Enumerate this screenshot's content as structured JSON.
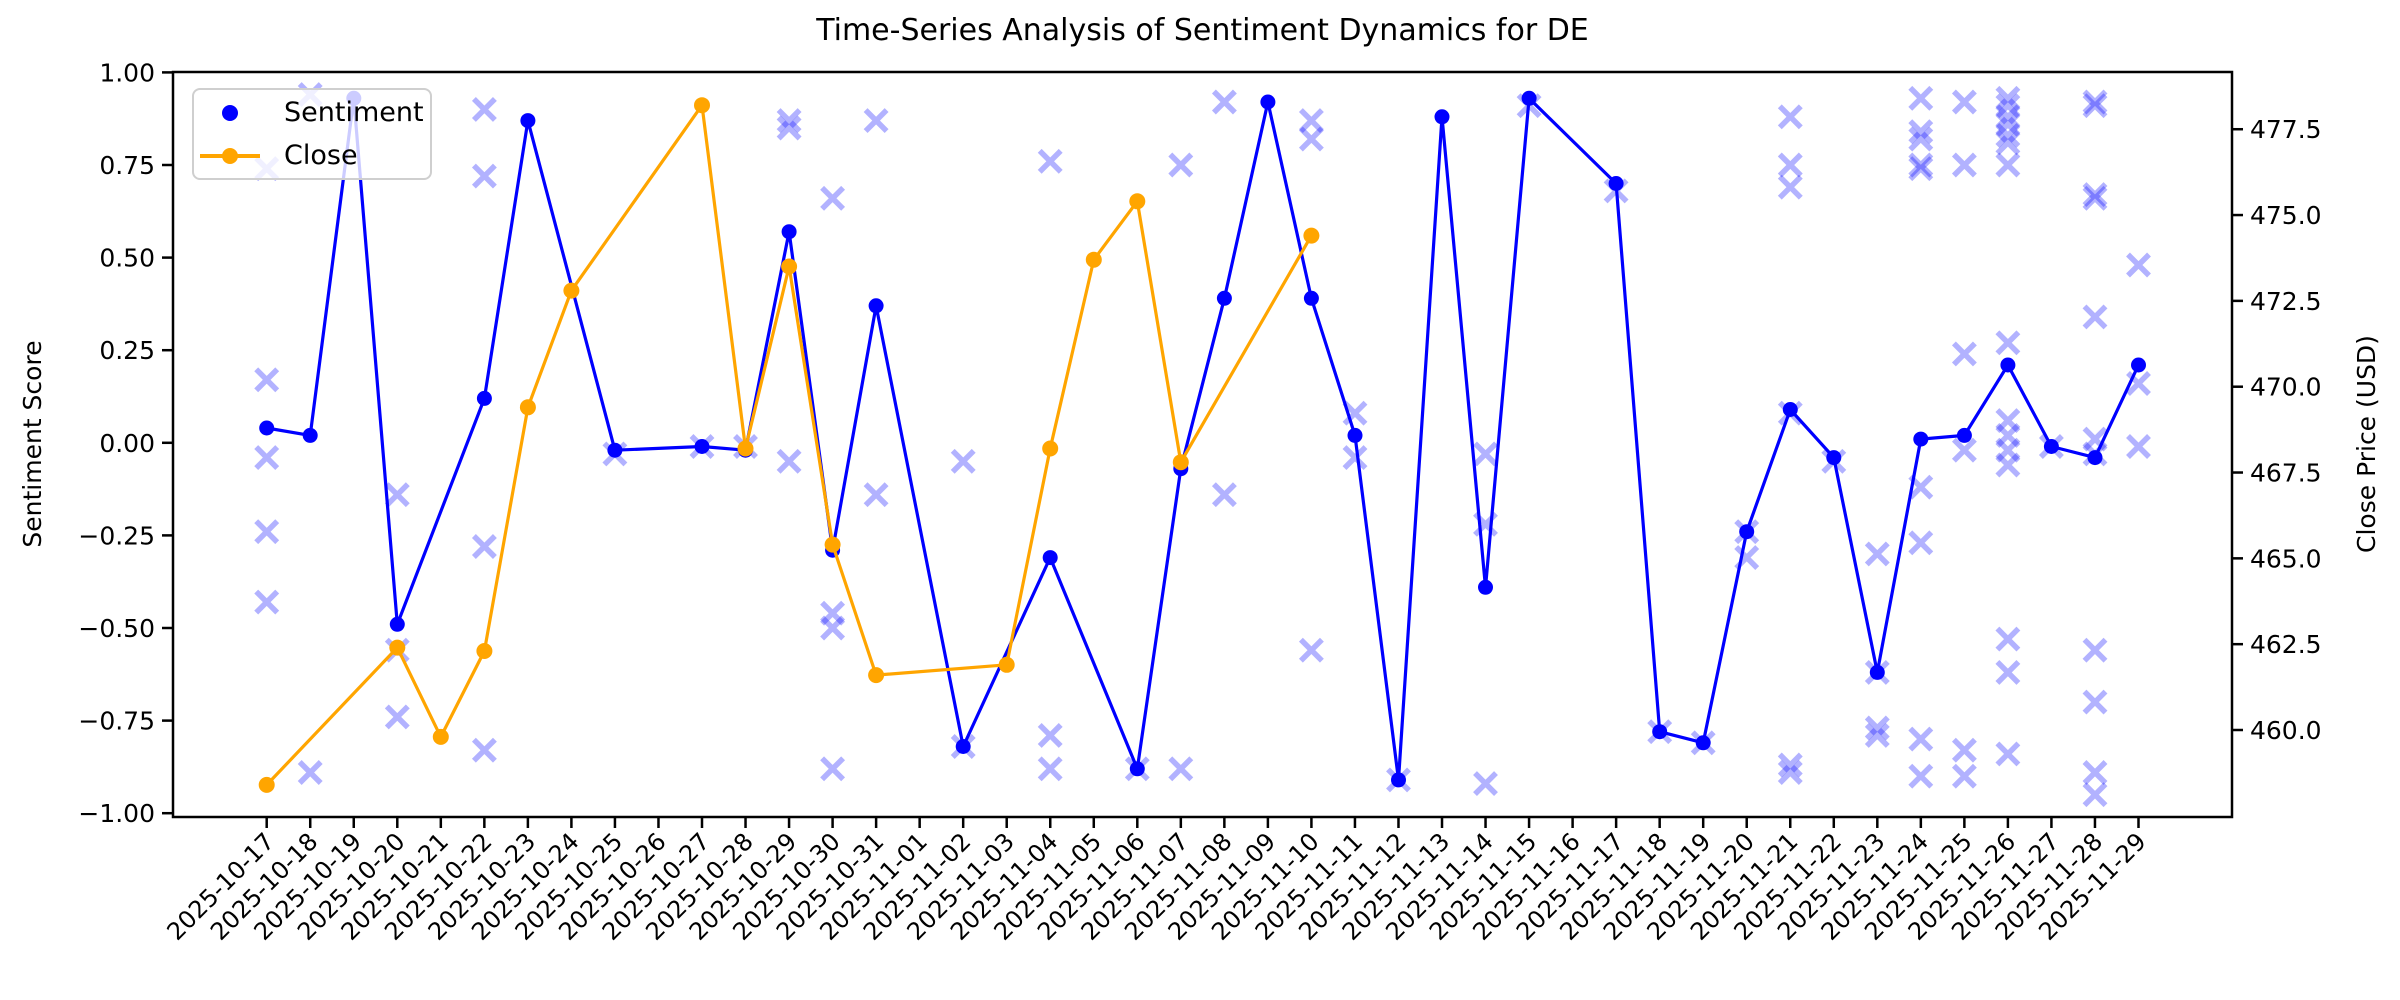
{
  "chart": {
    "title": "Time-Series Analysis of Sentiment Dynamics for DE",
    "ylabel_left": "Sentiment Score",
    "ylabel_right": "Close Price (USD)",
    "legend": [
      "Sentiment",
      "Close"
    ]
  },
  "chart_data": {
    "type": "line",
    "title": "Time-Series Analysis of Sentiment Dynamics for DE",
    "xlabel": "",
    "ylabel_left": "Sentiment Score",
    "ylabel_right": "Close Price (USD)",
    "ylim_left": [
      -1.0,
      1.0
    ],
    "ylim_right": [
      457.5,
      479.2
    ],
    "grid": false,
    "legend_position": "upper left",
    "colors": {
      "sentiment": "#0000FF",
      "close": "#FFA500",
      "scatter": "#0000FF",
      "scatter_opacity": 0.3,
      "axis": "#000000",
      "legend_border": "#CFCFCF"
    },
    "x_dates": [
      "2025-10-17",
      "2025-10-18",
      "2025-10-19",
      "2025-10-20",
      "2025-10-21",
      "2025-10-22",
      "2025-10-23",
      "2025-10-24",
      "2025-10-25",
      "2025-10-26",
      "2025-10-27",
      "2025-10-28",
      "2025-10-29",
      "2025-10-30",
      "2025-10-31",
      "2025-11-01",
      "2025-11-02",
      "2025-11-03",
      "2025-11-04",
      "2025-11-05",
      "2025-11-06",
      "2025-11-07",
      "2025-11-08",
      "2025-11-09",
      "2025-11-10",
      "2025-11-11",
      "2025-11-12",
      "2025-11-13",
      "2025-11-14",
      "2025-11-15",
      "2025-11-16",
      "2025-11-17",
      "2025-11-18",
      "2025-11-19",
      "2025-11-20",
      "2025-11-21",
      "2025-11-22",
      "2025-11-23",
      "2025-11-24",
      "2025-11-25",
      "2025-11-26",
      "2025-11-27",
      "2025-11-28",
      "2025-11-29"
    ],
    "yticks_left": {
      "values": [
        1.0,
        0.75,
        0.5,
        0.25,
        0.0,
        -0.25,
        -0.5,
        -0.75,
        -1.0
      ],
      "labels": [
        "1.00",
        "0.75",
        "0.50",
        "0.25",
        "0.00",
        "−0.25",
        "−0.50",
        "−0.75",
        "−1.00"
      ]
    },
    "yticks_right": {
      "values": [
        477.5,
        475.0,
        472.5,
        470.0,
        467.5,
        465.0,
        462.5,
        460.0
      ],
      "labels": [
        "477.5",
        "475.0",
        "472.5",
        "470.0",
        "467.5",
        "465.0",
        "462.5",
        "460.0"
      ]
    },
    "series": [
      {
        "name": "Sentiment",
        "axis": "left",
        "points": [
          [
            "2025-10-17",
            0.04
          ],
          [
            "2025-10-18",
            0.02
          ],
          [
            "2025-10-19",
            0.93
          ],
          [
            "2025-10-20",
            -0.49
          ],
          [
            "2025-10-22",
            0.12
          ],
          [
            "2025-10-23",
            0.87
          ],
          [
            "2025-10-25",
            -0.02
          ],
          [
            "2025-10-27",
            -0.01
          ],
          [
            "2025-10-28",
            -0.02
          ],
          [
            "2025-10-29",
            0.57
          ],
          [
            "2025-10-30",
            -0.29
          ],
          [
            "2025-10-31",
            0.37
          ],
          [
            "2025-11-02",
            -0.82
          ],
          [
            "2025-11-04",
            -0.31
          ],
          [
            "2025-11-06",
            -0.88
          ],
          [
            "2025-11-07",
            -0.07
          ],
          [
            "2025-11-08",
            0.39
          ],
          [
            "2025-11-09",
            0.92
          ],
          [
            "2025-11-10",
            0.39
          ],
          [
            "2025-11-11",
            0.02
          ],
          [
            "2025-11-12",
            -0.91
          ],
          [
            "2025-11-13",
            0.88
          ],
          [
            "2025-11-14",
            -0.39
          ],
          [
            "2025-11-15",
            0.93
          ],
          [
            "2025-11-17",
            0.7
          ],
          [
            "2025-11-18",
            -0.78
          ],
          [
            "2025-11-19",
            -0.81
          ],
          [
            "2025-11-20",
            -0.24
          ],
          [
            "2025-11-21",
            0.09
          ],
          [
            "2025-11-22",
            -0.04
          ],
          [
            "2025-11-23",
            -0.62
          ],
          [
            "2025-11-24",
            0.01
          ],
          [
            "2025-11-25",
            0.02
          ],
          [
            "2025-11-26",
            0.21
          ],
          [
            "2025-11-27",
            -0.01
          ],
          [
            "2025-11-28",
            -0.04
          ],
          [
            "2025-11-29",
            0.21
          ]
        ]
      },
      {
        "name": "Close",
        "axis": "right",
        "points": [
          [
            "2025-10-17",
            458.4
          ],
          [
            "2025-10-20",
            462.4
          ],
          [
            "2025-10-21",
            459.8
          ],
          [
            "2025-10-22",
            462.3
          ],
          [
            "2025-10-23",
            469.4
          ],
          [
            "2025-10-24",
            472.8
          ],
          [
            "2025-10-27",
            478.2
          ],
          [
            "2025-10-28",
            468.2
          ],
          [
            "2025-10-29",
            473.5
          ],
          [
            "2025-10-30",
            465.4
          ],
          [
            "2025-10-31",
            461.6
          ],
          [
            "2025-11-03",
            461.9
          ],
          [
            "2025-11-04",
            468.2
          ],
          [
            "2025-11-05",
            473.7
          ],
          [
            "2025-11-06",
            475.4
          ],
          [
            "2025-11-07",
            467.8
          ],
          [
            "2025-11-10",
            474.4
          ]
        ]
      }
    ],
    "scatter_sentiment_x": [
      [
        "2025-10-17",
        0.74
      ],
      [
        "2025-10-17",
        0.17
      ],
      [
        "2025-10-17",
        -0.04
      ],
      [
        "2025-10-17",
        -0.24
      ],
      [
        "2025-10-17",
        -0.43
      ],
      [
        "2025-10-18",
        0.94
      ],
      [
        "2025-10-18",
        -0.89
      ],
      [
        "2025-10-20",
        -0.14
      ],
      [
        "2025-10-20",
        -0.56
      ],
      [
        "2025-10-20",
        -0.74
      ],
      [
        "2025-10-22",
        0.9
      ],
      [
        "2025-10-22",
        0.72
      ],
      [
        "2025-10-22",
        -0.28
      ],
      [
        "2025-10-22",
        -0.83
      ],
      [
        "2025-10-25",
        -0.03
      ],
      [
        "2025-10-27",
        -0.01
      ],
      [
        "2025-10-28",
        -0.01
      ],
      [
        "2025-10-29",
        0.87
      ],
      [
        "2025-10-29",
        0.85
      ],
      [
        "2025-10-29",
        -0.05
      ],
      [
        "2025-10-30",
        0.66
      ],
      [
        "2025-10-30",
        -0.46
      ],
      [
        "2025-10-30",
        -0.5
      ],
      [
        "2025-10-30",
        -0.88
      ],
      [
        "2025-10-31",
        0.87
      ],
      [
        "2025-10-31",
        -0.14
      ],
      [
        "2025-11-02",
        -0.05
      ],
      [
        "2025-11-02",
        -0.82
      ],
      [
        "2025-11-04",
        0.76
      ],
      [
        "2025-11-04",
        -0.79
      ],
      [
        "2025-11-04",
        -0.88
      ],
      [
        "2025-11-06",
        -0.88
      ],
      [
        "2025-11-07",
        0.75
      ],
      [
        "2025-11-07",
        -0.88
      ],
      [
        "2025-11-08",
        0.92
      ],
      [
        "2025-11-08",
        -0.14
      ],
      [
        "2025-11-10",
        0.87
      ],
      [
        "2025-11-10",
        0.82
      ],
      [
        "2025-11-10",
        -0.56
      ],
      [
        "2025-11-11",
        0.08
      ],
      [
        "2025-11-11",
        -0.04
      ],
      [
        "2025-11-12",
        -0.91
      ],
      [
        "2025-11-14",
        -0.03
      ],
      [
        "2025-11-14",
        -0.22
      ],
      [
        "2025-11-14",
        -0.92
      ],
      [
        "2025-11-15",
        0.91
      ],
      [
        "2025-11-17",
        0.68
      ],
      [
        "2025-11-18",
        -0.78
      ],
      [
        "2025-11-19",
        -0.81
      ],
      [
        "2025-11-20",
        -0.24
      ],
      [
        "2025-11-20",
        -0.31
      ],
      [
        "2025-11-21",
        0.88
      ],
      [
        "2025-11-21",
        0.75
      ],
      [
        "2025-11-21",
        0.69
      ],
      [
        "2025-11-21",
        0.08
      ],
      [
        "2025-11-21",
        -0.87
      ],
      [
        "2025-11-21",
        -0.89
      ],
      [
        "2025-11-22",
        -0.05
      ],
      [
        "2025-11-23",
        -0.3
      ],
      [
        "2025-11-23",
        -0.62
      ],
      [
        "2025-11-23",
        -0.77
      ],
      [
        "2025-11-23",
        -0.79
      ],
      [
        "2025-11-24",
        0.93
      ],
      [
        "2025-11-24",
        0.84
      ],
      [
        "2025-11-24",
        0.82
      ],
      [
        "2025-11-24",
        0.75
      ],
      [
        "2025-11-24",
        0.74
      ],
      [
        "2025-11-24",
        -0.12
      ],
      [
        "2025-11-24",
        -0.27
      ],
      [
        "2025-11-24",
        -0.8
      ],
      [
        "2025-11-24",
        -0.9
      ],
      [
        "2025-11-25",
        0.92
      ],
      [
        "2025-11-25",
        0.75
      ],
      [
        "2025-11-25",
        0.24
      ],
      [
        "2025-11-25",
        -0.02
      ],
      [
        "2025-11-25",
        -0.83
      ],
      [
        "2025-11-25",
        -0.9
      ],
      [
        "2025-11-26",
        0.93
      ],
      [
        "2025-11-26",
        0.91
      ],
      [
        "2025-11-26",
        0.88
      ],
      [
        "2025-11-26",
        0.86
      ],
      [
        "2025-11-26",
        0.83
      ],
      [
        "2025-11-26",
        0.81
      ],
      [
        "2025-11-26",
        0.75
      ],
      [
        "2025-11-26",
        0.27
      ],
      [
        "2025-11-26",
        0.06
      ],
      [
        "2025-11-26",
        0.02
      ],
      [
        "2025-11-26",
        -0.02
      ],
      [
        "2025-11-26",
        -0.06
      ],
      [
        "2025-11-26",
        -0.53
      ],
      [
        "2025-11-26",
        -0.62
      ],
      [
        "2025-11-26",
        -0.84
      ],
      [
        "2025-11-27",
        -0.01
      ],
      [
        "2025-11-28",
        0.92
      ],
      [
        "2025-11-28",
        0.91
      ],
      [
        "2025-11-28",
        0.67
      ],
      [
        "2025-11-28",
        0.66
      ],
      [
        "2025-11-28",
        0.34
      ],
      [
        "2025-11-28",
        0.01
      ],
      [
        "2025-11-28",
        -0.03
      ],
      [
        "2025-11-28",
        -0.56
      ],
      [
        "2025-11-28",
        -0.7
      ],
      [
        "2025-11-28",
        -0.89
      ],
      [
        "2025-11-28",
        -0.95
      ],
      [
        "2025-11-29",
        0.48
      ],
      [
        "2025-11-29",
        0.16
      ],
      [
        "2025-11-29",
        -0.01
      ]
    ]
  }
}
